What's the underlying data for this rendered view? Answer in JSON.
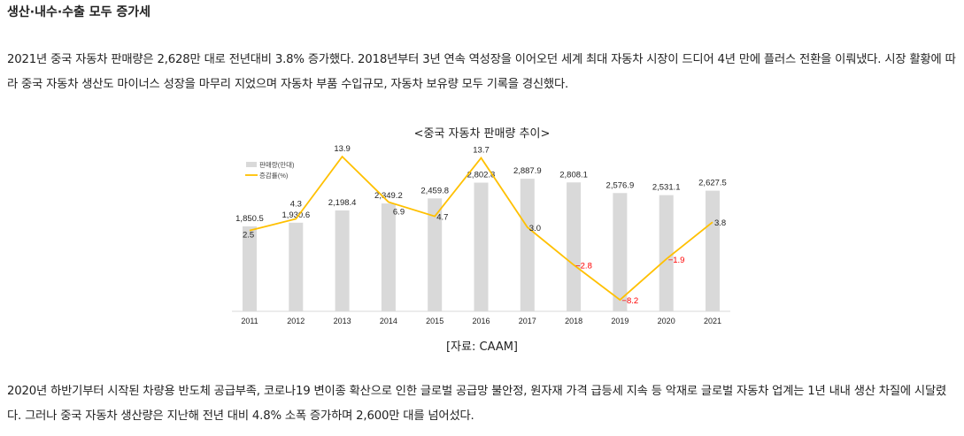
{
  "heading": "생산·내수·수출 모두 증가세",
  "paragraph1": "2021년 중국 자동차 판매량은 2,628만 대로 전년대비 3.8% 증가했다. 2018년부터 3년 연속 역성장을 이어오던 세계 최대 자동차 시장이 드디어 4년 만에 플러스 전환을 이뤄냈다. 시장 활황에 따라 중국 자동차 생산도 마이너스 성장을 마무리 지었으며 자동차 부품 수입규모, 자동차 보유량 모두 기록을 경신했다.",
  "source": "[자료: CAAM]",
  "paragraph2": "2020년 하반기부터 시작된 차량용 반도체 공급부족, 코로나19 변이종 확산으로 인한 글로벌 공급망 불안정, 원자재 가격 급등세 지속 등 악재로 글로벌 자동차 업계는 1년 내내 생산 차질에 시달렸다. 그러나 중국 자동차 생산량은 지난해 전년 대비 4.8% 소폭 증가하며 2,600만 대를 넘어섰다.",
  "chart_data": {
    "type": "bar+line",
    "title": "<중국 자동차 판매량 추이>",
    "categories": [
      "2011",
      "2012",
      "2013",
      "2014",
      "2015",
      "2016",
      "2017",
      "2018",
      "2019",
      "2020",
      "2021"
    ],
    "series": [
      {
        "name": "판매량(만대)",
        "type": "bar",
        "color": "#d9d9d9",
        "values": [
          1850.5,
          1930.6,
          2198.4,
          2349.2,
          2459.8,
          2802.8,
          2887.9,
          2808.1,
          2576.9,
          2531.1,
          2627.5
        ],
        "labels": [
          "1,850.5",
          "1,930.6",
          "2,198.4",
          "2,349.2",
          "2,459.8",
          "2,802.8",
          "2,887.9",
          "2,808.1",
          "2,576.9",
          "2,531.1",
          "2,627.5"
        ]
      },
      {
        "name": "증감률(%)",
        "type": "line",
        "color": "#ffc000",
        "negative_label_color": "#ff0000",
        "values": [
          2.5,
          4.3,
          13.9,
          6.9,
          4.7,
          13.7,
          3.0,
          -2.8,
          -8.2,
          -1.9,
          3.8
        ],
        "labels": [
          "2.5",
          "4.3",
          "13.9",
          "6.9",
          "4.7",
          "13.7",
          "3.0",
          "−2.8",
          "−8.2",
          "−1.9",
          "3.8"
        ]
      }
    ],
    "legend": "top-left",
    "grid": false
  }
}
